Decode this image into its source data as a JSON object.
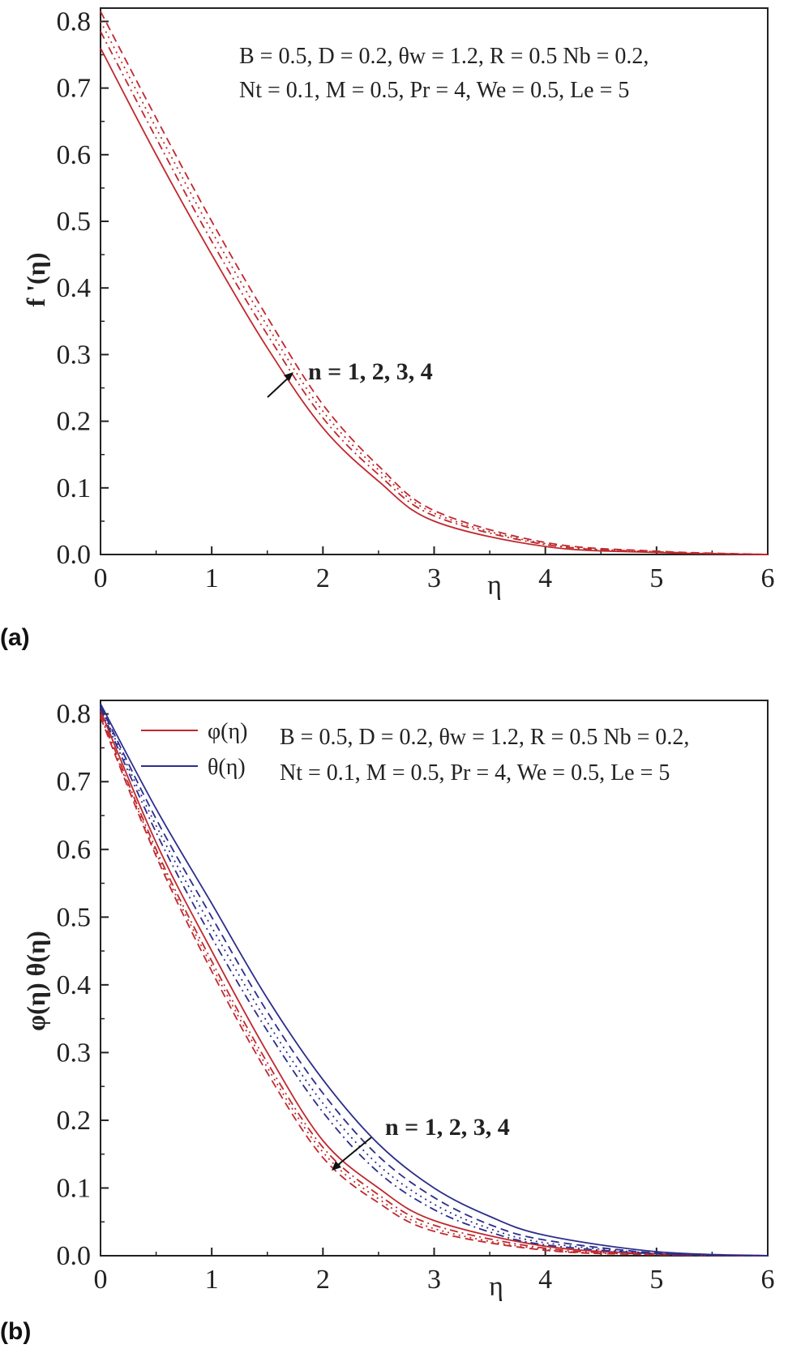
{
  "chart_data": [
    {
      "panel_label": "(a)",
      "type": "line",
      "xlabel": "η",
      "ylabel": "f '(η)",
      "xlim": [
        0,
        6
      ],
      "ylim": [
        0,
        0.82
      ],
      "x_ticks": [
        "0",
        "1",
        "2",
        "3",
        "4",
        "5",
        "6"
      ],
      "y_ticks": [
        "0.0",
        "0.1",
        "0.2",
        "0.3",
        "0.4",
        "0.5",
        "0.6",
        "0.7",
        "0.8"
      ],
      "params_line1": "B = 0.5, D = 0.2, θw = 1.2, R = 0.5 Nb = 0.2,",
      "params_line2": "Nt = 0.1, M = 0.5, Pr = 4, We = 0.5, Le = 5",
      "arrow_label": "n = 1, 2, 3, 4",
      "grid": false,
      "series": [
        {
          "color": "#c0282d",
          "dash": "solid",
          "points": [
            [
              0,
              0.76
            ],
            [
              0.5,
              0.6
            ],
            [
              1,
              0.45
            ],
            [
              1.5,
              0.31
            ],
            [
              2,
              0.19
            ],
            [
              2.5,
              0.11
            ],
            [
              3,
              0.05
            ],
            [
              4,
              0.012
            ],
            [
              5,
              0.003
            ],
            [
              6,
              0.0
            ]
          ]
        },
        {
          "color": "#c0282d",
          "dash": "dashdot",
          "points": [
            [
              0,
              0.785
            ],
            [
              0.5,
              0.625
            ],
            [
              1,
              0.47
            ],
            [
              1.5,
              0.33
            ],
            [
              2,
              0.205
            ],
            [
              2.5,
              0.12
            ],
            [
              3,
              0.058
            ],
            [
              4,
              0.015
            ],
            [
              5,
              0.004
            ],
            [
              6,
              0.0
            ]
          ]
        },
        {
          "color": "#c0282d",
          "dash": "dot",
          "points": [
            [
              0,
              0.8
            ],
            [
              0.5,
              0.64
            ],
            [
              1,
              0.485
            ],
            [
              1.5,
              0.343
            ],
            [
              2,
              0.215
            ],
            [
              2.5,
              0.127
            ],
            [
              3,
              0.062
            ],
            [
              4,
              0.016
            ],
            [
              5,
              0.004
            ],
            [
              6,
              0.0
            ]
          ]
        },
        {
          "color": "#c0282d",
          "dash": "dash",
          "points": [
            [
              0,
              0.815
            ],
            [
              0.5,
              0.655
            ],
            [
              1,
              0.5
            ],
            [
              1.5,
              0.356
            ],
            [
              2,
              0.225
            ],
            [
              2.5,
              0.133
            ],
            [
              3,
              0.066
            ],
            [
              4,
              0.018
            ],
            [
              5,
              0.005
            ],
            [
              6,
              0.0
            ]
          ]
        }
      ]
    },
    {
      "panel_label": "(b)",
      "type": "line",
      "xlabel": "η",
      "ylabel": "φ(η) θ(η)",
      "xlim": [
        0,
        6
      ],
      "ylim": [
        0,
        0.82
      ],
      "x_ticks": [
        "0",
        "1",
        "2",
        "3",
        "4",
        "5",
        "6"
      ],
      "y_ticks": [
        "0.0",
        "0.1",
        "0.2",
        "0.3",
        "0.4",
        "0.5",
        "0.6",
        "0.7",
        "0.8"
      ],
      "params_line1": "B = 0.5, D = 0.2, θw = 1.2, R = 0.5 Nb = 0.2,",
      "params_line2": "Nt = 0.1, M = 0.5, Pr = 4, We = 0.5, Le = 5",
      "arrow_label": "n = 1, 2, 3, 4",
      "legend": [
        {
          "name": "φ(η)",
          "color": "#c0282d"
        },
        {
          "name": "θ(η)",
          "color": "#2b2e8c"
        }
      ],
      "grid": false,
      "series": [
        {
          "color": "#c0282d",
          "dash": "solid",
          "points": [
            [
              0,
              0.805
            ],
            [
              0.5,
              0.61
            ],
            [
              1,
              0.45
            ],
            [
              1.5,
              0.3
            ],
            [
              2,
              0.17
            ],
            [
              2.5,
              0.1
            ],
            [
              3,
              0.052
            ],
            [
              4,
              0.014
            ],
            [
              5,
              0.003
            ],
            [
              6,
              0.0
            ]
          ]
        },
        {
          "color": "#c0282d",
          "dash": "dashdot",
          "points": [
            [
              0,
              0.8
            ],
            [
              0.5,
              0.6
            ],
            [
              1,
              0.435
            ],
            [
              1.5,
              0.285
            ],
            [
              2,
              0.16
            ],
            [
              2.5,
              0.09
            ],
            [
              3,
              0.045
            ],
            [
              4,
              0.011
            ],
            [
              5,
              0.002
            ],
            [
              6,
              0.0
            ]
          ]
        },
        {
          "color": "#c0282d",
          "dash": "dot",
          "points": [
            [
              0,
              0.797
            ],
            [
              0.5,
              0.595
            ],
            [
              1,
              0.428
            ],
            [
              1.5,
              0.278
            ],
            [
              2,
              0.153
            ],
            [
              2.5,
              0.084
            ],
            [
              3,
              0.04
            ],
            [
              4,
              0.009
            ],
            [
              5,
              0.002
            ],
            [
              6,
              0.0
            ]
          ]
        },
        {
          "color": "#c0282d",
          "dash": "dash",
          "points": [
            [
              0,
              0.795
            ],
            [
              0.5,
              0.59
            ],
            [
              1,
              0.42
            ],
            [
              1.5,
              0.27
            ],
            [
              2,
              0.145
            ],
            [
              2.5,
              0.078
            ],
            [
              3,
              0.036
            ],
            [
              4,
              0.008
            ],
            [
              5,
              0.0015
            ],
            [
              6,
              0.0
            ]
          ]
        },
        {
          "color": "#2b2e8c",
          "dash": "solid",
          "points": [
            [
              0,
              0.815
            ],
            [
              0.5,
              0.66
            ],
            [
              1,
              0.52
            ],
            [
              1.5,
              0.38
            ],
            [
              2,
              0.26
            ],
            [
              2.5,
              0.165
            ],
            [
              3,
              0.1
            ],
            [
              3.5,
              0.058
            ],
            [
              4,
              0.03
            ],
            [
              5,
              0.006
            ],
            [
              6,
              0.0
            ]
          ]
        },
        {
          "color": "#2b2e8c",
          "dash": "dash",
          "points": [
            [
              0,
              0.812
            ],
            [
              0.5,
              0.645
            ],
            [
              1,
              0.5
            ],
            [
              1.5,
              0.36
            ],
            [
              2,
              0.24
            ],
            [
              2.5,
              0.147
            ],
            [
              3,
              0.086
            ],
            [
              3.5,
              0.046
            ],
            [
              4,
              0.023
            ],
            [
              5,
              0.004
            ],
            [
              6,
              0.0
            ]
          ]
        },
        {
          "color": "#2b2e8c",
          "dash": "dot",
          "points": [
            [
              0,
              0.81
            ],
            [
              0.5,
              0.635
            ],
            [
              1,
              0.485
            ],
            [
              1.5,
              0.345
            ],
            [
              2,
              0.225
            ],
            [
              2.5,
              0.134
            ],
            [
              3,
              0.076
            ],
            [
              3.5,
              0.04
            ],
            [
              4,
              0.019
            ],
            [
              5,
              0.0035
            ],
            [
              6,
              0.0
            ]
          ]
        },
        {
          "color": "#2b2e8c",
          "dash": "dashdot",
          "points": [
            [
              0,
              0.808
            ],
            [
              0.5,
              0.625
            ],
            [
              1,
              0.47
            ],
            [
              1.5,
              0.332
            ],
            [
              2,
              0.212
            ],
            [
              2.5,
              0.123
            ],
            [
              3,
              0.068
            ],
            [
              3.5,
              0.035
            ],
            [
              4,
              0.016
            ],
            [
              5,
              0.003
            ],
            [
              6,
              0.0
            ]
          ]
        }
      ]
    }
  ]
}
